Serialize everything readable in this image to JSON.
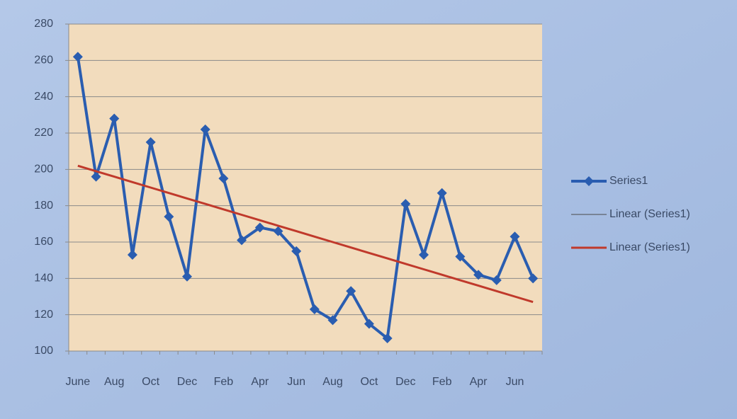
{
  "chart_data": {
    "type": "line",
    "categories": [
      "June",
      null,
      "Aug",
      null,
      "Oct",
      null,
      "Dec",
      null,
      "Feb",
      null,
      "Apr",
      null,
      "Jun",
      null,
      "Aug",
      null,
      "Oct",
      null,
      "Dec",
      null,
      "Feb",
      null,
      "Apr",
      null,
      "Jun",
      null
    ],
    "series": [
      {
        "name": "Series1",
        "color": "#2a5db0",
        "marker": "diamond",
        "values": [
          262,
          196,
          228,
          153,
          215,
          174,
          141,
          222,
          195,
          161,
          168,
          166,
          155,
          123,
          117,
          133,
          115,
          107,
          181,
          153,
          187,
          152,
          142,
          139,
          163,
          140
        ]
      },
      {
        "name": "Linear (Series1)",
        "color": "#4a4a4a",
        "values": [
          null,
          null,
          null,
          null,
          null,
          null,
          null,
          null,
          null,
          null,
          null,
          null,
          null,
          null,
          null,
          null,
          null,
          null,
          null,
          null,
          null,
          null,
          null,
          null,
          null,
          null
        ]
      },
      {
        "name": "Linear (Series1)",
        "color": "#c0392b",
        "values": [
          202,
          199,
          196,
          193,
          190,
          187,
          184,
          181,
          178,
          175,
          172,
          169,
          166,
          163,
          160,
          157,
          154,
          151,
          148,
          145,
          142,
          139,
          136,
          133,
          130,
          127
        ]
      }
    ],
    "ylim": [
      100,
      280
    ],
    "yticks": [
      100,
      120,
      140,
      160,
      180,
      200,
      220,
      240,
      260,
      280
    ],
    "grid": true,
    "legend": "right"
  }
}
